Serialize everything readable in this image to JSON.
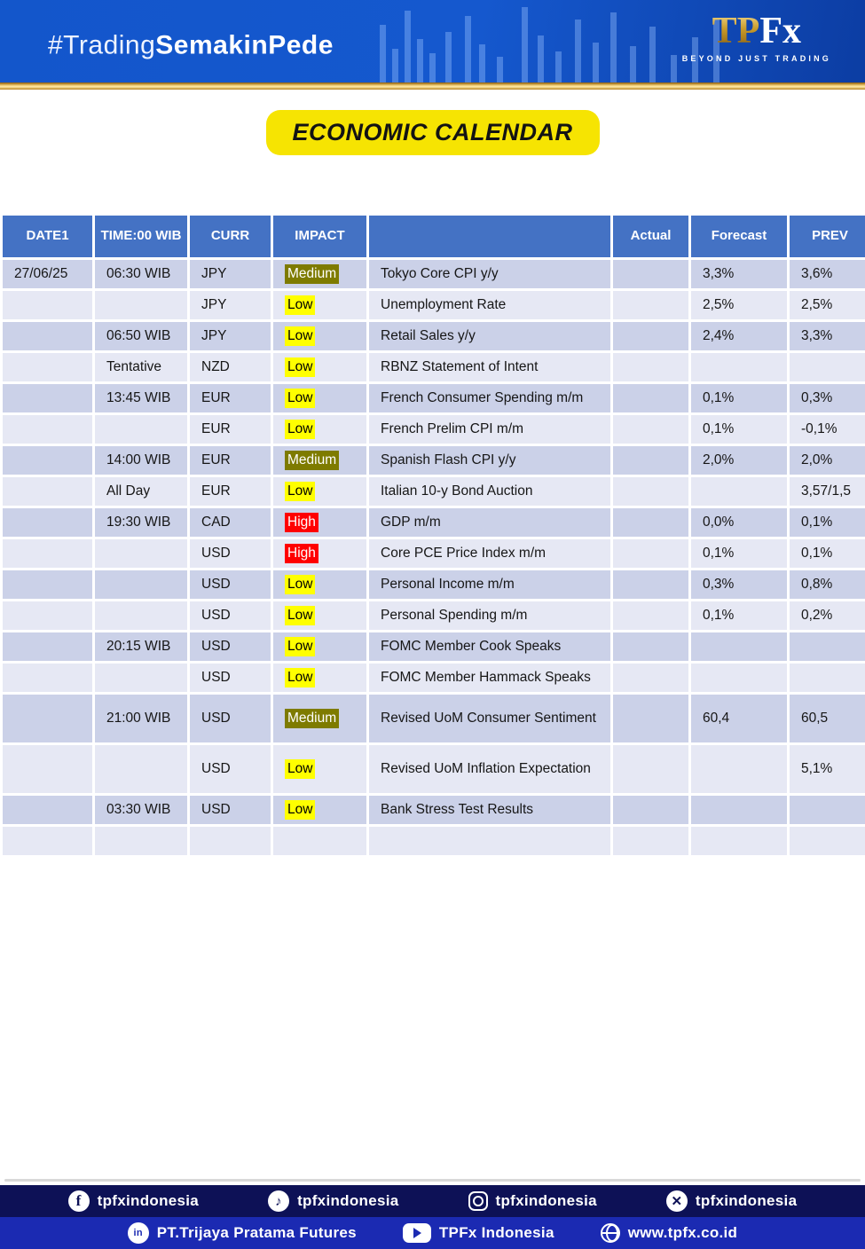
{
  "banner": {
    "tagline_prefix": "#Trading",
    "tagline_bold": "SemakinPede",
    "logo_tp": "TP",
    "logo_fx": "Fx",
    "logo_subtitle": "BEYOND JUST TRADING"
  },
  "title": "ECONOMIC CALENDAR",
  "table": {
    "columns": [
      {
        "key": "date",
        "label": "DATE1"
      },
      {
        "key": "time",
        "label": "TIME:00 WIB"
      },
      {
        "key": "curr",
        "label": "CURR"
      },
      {
        "key": "impact",
        "label": "IMPACT"
      },
      {
        "key": "event",
        "label": ""
      },
      {
        "key": "actual",
        "label": "Actual"
      },
      {
        "key": "forecast",
        "label": "Forecast"
      },
      {
        "key": "prev",
        "label": "PREV"
      }
    ],
    "impact_styles": {
      "High": {
        "bg": "#ff0000",
        "fg": "#ffffff"
      },
      "Medium": {
        "bg": "#7e7b00",
        "fg": "#ffffff"
      },
      "Low": {
        "bg": "#ffff00",
        "fg": "#000000"
      }
    },
    "rows": [
      {
        "date": "27/06/25",
        "time": "06:30 WIB",
        "curr": "JPY",
        "impact": "Medium",
        "event": "Tokyo Core CPI y/y",
        "actual": "",
        "forecast": "3,3%",
        "prev": "3,6%"
      },
      {
        "date": "",
        "time": "",
        "curr": "JPY",
        "impact": "Low",
        "event": "Unemployment Rate",
        "actual": "",
        "forecast": "2,5%",
        "prev": "2,5%"
      },
      {
        "date": "",
        "time": "06:50 WIB",
        "curr": "JPY",
        "impact": "Low",
        "event": "Retail Sales y/y",
        "actual": "",
        "forecast": "2,4%",
        "prev": "3,3%"
      },
      {
        "date": "",
        "time": "Tentative",
        "curr": "NZD",
        "impact": "Low",
        "event": "RBNZ Statement of Intent",
        "actual": "",
        "forecast": "",
        "prev": ""
      },
      {
        "date": "",
        "time": "13:45 WIB",
        "curr": "EUR",
        "impact": "Low",
        "event": "French Consumer Spending m/m",
        "actual": "",
        "forecast": "0,1%",
        "prev": "0,3%"
      },
      {
        "date": "",
        "time": "",
        "curr": "EUR",
        "impact": "Low",
        "event": "French Prelim CPI m/m",
        "actual": "",
        "forecast": "0,1%",
        "prev": "-0,1%"
      },
      {
        "date": "",
        "time": "14:00 WIB",
        "curr": "EUR",
        "impact": "Medium",
        "event": "Spanish Flash CPI y/y",
        "actual": "",
        "forecast": "2,0%",
        "prev": "2,0%"
      },
      {
        "date": "",
        "time": "All Day",
        "curr": "EUR",
        "impact": "Low",
        "event": "Italian 10-y Bond Auction",
        "actual": "",
        "forecast": "",
        "prev": "3,57/1,5"
      },
      {
        "date": "",
        "time": "19:30 WIB",
        "curr": "CAD",
        "impact": "High",
        "event": "GDP m/m",
        "actual": "",
        "forecast": "0,0%",
        "prev": "0,1%"
      },
      {
        "date": "",
        "time": "",
        "curr": "USD",
        "impact": "High",
        "event": "Core PCE Price Index m/m",
        "actual": "",
        "forecast": "0,1%",
        "prev": "0,1%"
      },
      {
        "date": "",
        "time": "",
        "curr": "USD",
        "impact": "Low",
        "event": "Personal Income m/m",
        "actual": "",
        "forecast": "0,3%",
        "prev": "0,8%"
      },
      {
        "date": "",
        "time": "",
        "curr": "USD",
        "impact": "Low",
        "event": "Personal Spending m/m",
        "actual": "",
        "forecast": "0,1%",
        "prev": "0,2%"
      },
      {
        "date": "",
        "time": "20:15 WIB",
        "curr": "USD",
        "impact": "Low",
        "event": "FOMC Member Cook Speaks",
        "actual": "",
        "forecast": "",
        "prev": ""
      },
      {
        "date": "",
        "time": "",
        "curr": "USD",
        "impact": "Low",
        "event": "FOMC Member Hammack Speaks",
        "actual": "",
        "forecast": "",
        "prev": ""
      },
      {
        "date": "",
        "time": "21:00 WIB",
        "curr": "USD",
        "impact": "Medium",
        "event": "Revised UoM Consumer Sentiment",
        "actual": "",
        "forecast": "60,4",
        "prev": "60,5",
        "tall": true
      },
      {
        "date": "",
        "time": "",
        "curr": "USD",
        "impact": "Low",
        "event": "Revised UoM Inflation Expectation",
        "actual": "",
        "forecast": "",
        "prev": "5,1%",
        "tall": true
      },
      {
        "date": "",
        "time": "03:30 WIB",
        "curr": "USD",
        "impact": "Low",
        "event": "Bank Stress Test Results",
        "actual": "",
        "forecast": "",
        "prev": ""
      },
      {
        "date": "",
        "time": "",
        "curr": "",
        "impact": "",
        "event": "",
        "actual": "",
        "forecast": "",
        "prev": ""
      }
    ]
  },
  "footer": {
    "social_row": [
      {
        "icon": "facebook-icon",
        "label": "tpfxindonesia"
      },
      {
        "icon": "tiktok-icon",
        "label": "tpfxindonesia"
      },
      {
        "icon": "instagram-icon",
        "label": "tpfxindonesia"
      },
      {
        "icon": "x-icon",
        "label": "tpfxindonesia"
      }
    ],
    "company_row": [
      {
        "icon": "linkedin-icon",
        "label": "PT.Trijaya Pratama Futures"
      },
      {
        "icon": "youtube-icon",
        "label": "TPFx Indonesia"
      },
      {
        "icon": "globe-icon",
        "label": "www.tpfx.co.id"
      }
    ]
  }
}
